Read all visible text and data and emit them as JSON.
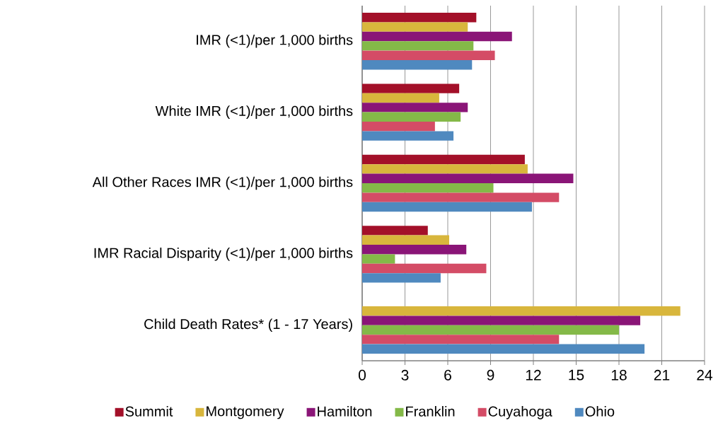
{
  "chart_data": {
    "type": "bar",
    "orientation": "horizontal",
    "categories": [
      "IMR (<1)/per 1,000 births",
      "White IMR (<1)/per 1,000 births",
      "All Other Races IMR (<1)/per 1,000 births",
      "IMR Racial Disparity (<1)/per 1,000 births",
      "Child Death Rates* (1 - 17 Years)"
    ],
    "series": [
      {
        "name": "Summit",
        "color": "#a31029",
        "values": [
          8.0,
          6.8,
          11.4,
          4.6,
          null
        ]
      },
      {
        "name": "Montgomery",
        "color": "#d8b63c",
        "values": [
          7.4,
          5.4,
          11.6,
          6.1,
          22.3
        ]
      },
      {
        "name": "Hamilton",
        "color": "#8a1577",
        "values": [
          10.5,
          7.4,
          14.8,
          7.3,
          19.5
        ]
      },
      {
        "name": "Franklin",
        "color": "#84b948",
        "values": [
          7.8,
          6.9,
          9.2,
          2.3,
          18.0
        ]
      },
      {
        "name": "Cuyahoga",
        "color": "#d44c66",
        "values": [
          9.3,
          5.1,
          13.8,
          8.7,
          13.8
        ]
      },
      {
        "name": "Ohio",
        "color": "#4f89bf",
        "values": [
          7.7,
          6.4,
          11.9,
          5.5,
          19.8
        ]
      }
    ],
    "xlim": [
      0,
      24
    ],
    "xticks": [
      0,
      3,
      6,
      9,
      12,
      15,
      18,
      21,
      24
    ],
    "grid": "x",
    "legend": "bottom"
  }
}
